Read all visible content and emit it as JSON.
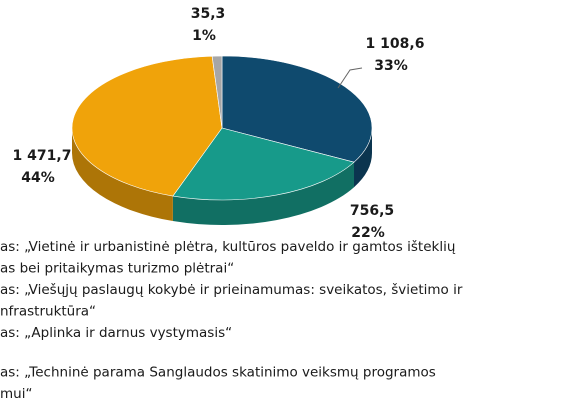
{
  "chart_data": {
    "type": "pie3d",
    "values": [
      1108.6,
      756.5,
      1471.7,
      35.3
    ],
    "value_labels": [
      "1 108,6",
      "756,5",
      "1 471,7",
      "35,3"
    ],
    "percents": [
      33,
      22,
      44,
      1
    ],
    "percent_labels": [
      "33%",
      "22%",
      "44%",
      "1%"
    ],
    "colors": [
      "#0f4a6e",
      "#179a8a",
      "#f0a30a",
      "#a6a6a6"
    ],
    "legend": [
      {
        "lines": [
          "as: „Vietinė ir urbanistinė plėtra, kultūros paveldo ir gamtos išteklių",
          "as bei pritaikymas turizmo plėtrai“"
        ]
      },
      {
        "lines": [
          "as: „Viešųjų paslaugų kokybė ir prieinamumas: sveikatos, švietimo ir",
          "nfrastruktūra“"
        ]
      },
      {
        "lines": [
          "as: „Aplinka ir darnus vystymasis“"
        ]
      },
      {
        "lines": [
          "as: „Techninė parama Sanglaudos skatinimo veiksmų programos",
          "mui“"
        ]
      }
    ]
  }
}
